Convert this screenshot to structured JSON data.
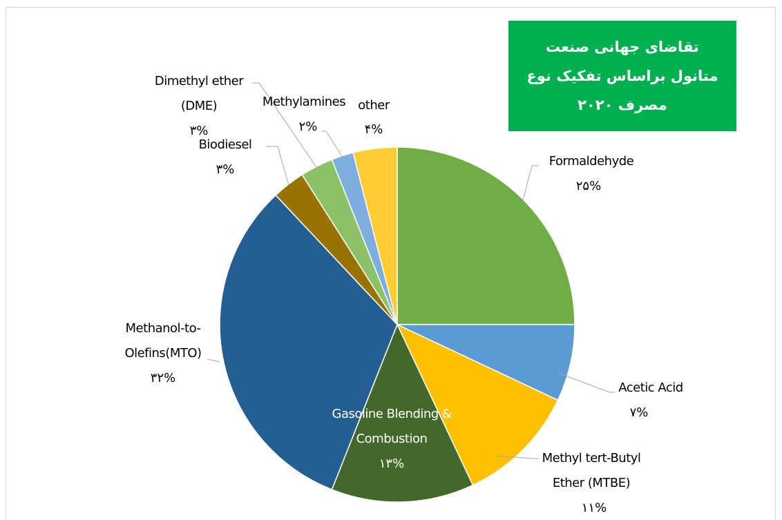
{
  "chart_data": {
    "type": "pie",
    "title": "تقاضای جهانی صنعت متانول براساس تفکیک نوع مصرف ۲۰۲۰",
    "categories": [
      "Formaldehyde",
      "Acetic Acid",
      "Methyl tert-Butyl Ether (MTBE)",
      "Gasoline Blending & Combustion",
      "Methanol-to-Olefins(MTO)",
      "Biodiesel",
      "Dimethyl ether (DME)",
      "Methylamines",
      "other"
    ],
    "values": [
      25,
      7,
      11,
      13,
      32,
      3,
      3,
      2,
      4
    ],
    "value_labels": [
      "۲۵%",
      "۷%",
      "۱۱%",
      "۱۳%",
      "۳۲%",
      "۳%",
      "۳%",
      "۲%",
      "۴%"
    ],
    "colors": [
      "#70ad47",
      "#5b9bd5",
      "#ffc000",
      "#43682b",
      "#255e91",
      "#997300",
      "#8cc168",
      "#7cafdd",
      "#ffcd33"
    ]
  }
}
